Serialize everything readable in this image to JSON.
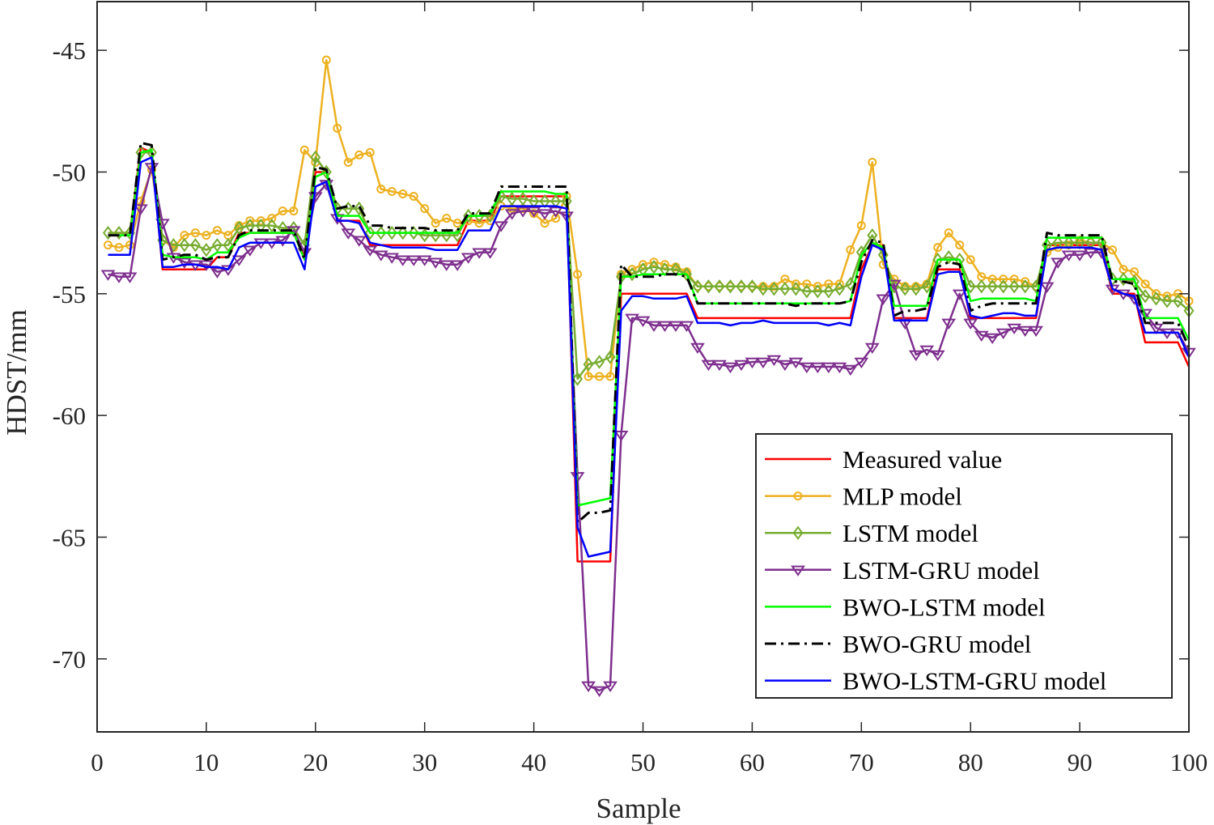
{
  "chart_data": {
    "type": "line",
    "xlabel": "Sample",
    "ylabel": "HDST/mm",
    "xlim": [
      0,
      100
    ],
    "ylim": [
      -73,
      -43
    ],
    "xticks": [
      0,
      10,
      20,
      30,
      40,
      50,
      60,
      70,
      80,
      90,
      100
    ],
    "yticks": [
      -45,
      -50,
      -55,
      -60,
      -65,
      -70
    ],
    "grid": false,
    "legend_position": "bottom-right",
    "x": [
      1,
      2,
      3,
      4,
      5,
      6,
      7,
      8,
      9,
      10,
      11,
      12,
      13,
      14,
      15,
      16,
      17,
      18,
      19,
      20,
      21,
      22,
      23,
      24,
      25,
      26,
      27,
      28,
      29,
      30,
      31,
      32,
      33,
      34,
      35,
      36,
      37,
      38,
      39,
      40,
      41,
      42,
      43,
      44,
      45,
      46,
      47,
      48,
      49,
      50,
      51,
      52,
      53,
      54,
      55,
      56,
      57,
      58,
      59,
      60,
      61,
      62,
      63,
      64,
      65,
      66,
      67,
      68,
      69,
      70,
      71,
      72,
      73,
      74,
      75,
      76,
      77,
      78,
      79,
      80,
      81,
      82,
      83,
      84,
      85,
      86,
      87,
      88,
      89,
      90,
      91,
      92,
      93,
      94,
      95,
      96,
      97,
      98,
      99,
      100
    ],
    "series": [
      {
        "name": "Measured value",
        "color": "#ff0000",
        "style": "solid",
        "marker": "none",
        "values": [
          -52.5,
          -52.5,
          -52.5,
          -49.0,
          -49.2,
          -54.0,
          -54.0,
          -54.0,
          -54.0,
          -54.0,
          -53.5,
          -53.5,
          -52.5,
          -52.5,
          -52.5,
          -52.5,
          -52.5,
          -52.5,
          -53.5,
          -50.0,
          -50.0,
          -52.0,
          -52.0,
          -52.0,
          -53.0,
          -53.0,
          -53.0,
          -53.0,
          -53.0,
          -53.0,
          -53.0,
          -53.0,
          -53.0,
          -52.0,
          -52.0,
          -52.0,
          -51.0,
          -51.0,
          -51.0,
          -51.0,
          -51.0,
          -51.0,
          -51.0,
          -66.0,
          -66.0,
          -66.0,
          -66.0,
          -55.0,
          -55.0,
          -55.0,
          -55.0,
          -55.0,
          -55.0,
          -55.0,
          -56.0,
          -56.0,
          -56.0,
          -56.0,
          -56.0,
          -56.0,
          -56.0,
          -56.0,
          -56.0,
          -56.0,
          -56.0,
          -56.0,
          -56.0,
          -56.0,
          -56.0,
          -54.0,
          -53.0,
          -53.0,
          -56.0,
          -56.0,
          -56.0,
          -56.0,
          -54.0,
          -54.0,
          -54.0,
          -56.0,
          -56.0,
          -56.0,
          -56.0,
          -56.0,
          -56.0,
          -56.0,
          -53.0,
          -53.0,
          -53.0,
          -53.0,
          -53.0,
          -53.0,
          -55.0,
          -55.0,
          -55.0,
          -57.0,
          -57.0,
          -57.0,
          -57.0,
          -58.0
        ]
      },
      {
        "name": "MLP model",
        "color": "#edb120",
        "style": "solid",
        "marker": "circle",
        "values": [
          -53.0,
          -53.1,
          -53.0,
          -51.2,
          -49.9,
          -52.8,
          -53.1,
          -52.6,
          -52.5,
          -52.6,
          -52.4,
          -52.6,
          -52.2,
          -52.0,
          -52.0,
          -51.9,
          -51.6,
          -51.6,
          -49.1,
          -49.6,
          -45.4,
          -48.2,
          -49.6,
          -49.3,
          -49.2,
          -50.7,
          -50.8,
          -50.9,
          -51.0,
          -51.5,
          -52.1,
          -51.9,
          -52.1,
          -52.0,
          -52.1,
          -52.0,
          -51.4,
          -51.5,
          -51.5,
          -51.7,
          -52.1,
          -51.9,
          -51.0,
          -54.2,
          -58.4,
          -58.4,
          -58.4,
          -54.2,
          -54.0,
          -53.8,
          -53.7,
          -53.8,
          -53.9,
          -54.1,
          -54.7,
          -54.7,
          -54.7,
          -54.7,
          -54.7,
          -54.7,
          -54.7,
          -54.7,
          -54.4,
          -54.6,
          -54.6,
          -54.7,
          -54.6,
          -54.6,
          -53.2,
          -52.2,
          -49.6,
          -53.8,
          -54.4,
          -54.7,
          -54.7,
          -54.6,
          -53.1,
          -52.5,
          -53.0,
          -53.6,
          -54.3,
          -54.4,
          -54.4,
          -54.4,
          -54.5,
          -54.7,
          -53.3,
          -53.1,
          -53.0,
          -52.8,
          -52.9,
          -52.9,
          -53.2,
          -54.0,
          -54.1,
          -54.6,
          -55.0,
          -55.1,
          -55.0,
          -55.3
        ]
      },
      {
        "name": "LSTM model",
        "color": "#77ac30",
        "style": "solid",
        "marker": "diamond",
        "values": [
          -52.5,
          -52.5,
          -52.5,
          -49.2,
          -49.2,
          -52.8,
          -53.0,
          -53.0,
          -53.0,
          -53.2,
          -53.0,
          -53.0,
          -52.3,
          -52.2,
          -52.2,
          -52.2,
          -52.3,
          -52.3,
          -53.0,
          -49.4,
          -50.0,
          -51.5,
          -51.5,
          -51.5,
          -52.5,
          -52.5,
          -52.5,
          -52.5,
          -52.5,
          -52.6,
          -52.6,
          -52.6,
          -52.6,
          -51.8,
          -51.8,
          -51.8,
          -51.0,
          -51.1,
          -51.1,
          -51.2,
          -51.2,
          -51.2,
          -51.2,
          -58.5,
          -57.9,
          -57.8,
          -57.6,
          -54.3,
          -54.2,
          -54.0,
          -53.9,
          -54.0,
          -54.0,
          -54.2,
          -54.7,
          -54.7,
          -54.7,
          -54.7,
          -54.7,
          -54.7,
          -54.8,
          -54.8,
          -54.8,
          -54.8,
          -54.9,
          -54.9,
          -54.9,
          -54.8,
          -54.6,
          -53.3,
          -52.6,
          -53.4,
          -54.7,
          -54.8,
          -54.8,
          -54.7,
          -53.6,
          -53.5,
          -53.6,
          -54.7,
          -54.7,
          -54.7,
          -54.7,
          -54.7,
          -54.7,
          -54.7,
          -53.0,
          -52.9,
          -52.9,
          -52.9,
          -52.9,
          -52.9,
          -54.4,
          -54.4,
          -54.5,
          -55.1,
          -55.2,
          -55.3,
          -55.3,
          -55.7
        ]
      },
      {
        "name": "LSTM-GRU model",
        "color": "#7e2f8e",
        "style": "solid",
        "marker": "triangle-down",
        "values": [
          -54.2,
          -54.3,
          -54.3,
          -51.5,
          -49.8,
          -52.1,
          -53.5,
          -53.7,
          -53.8,
          -53.8,
          -54.1,
          -54.0,
          -53.6,
          -53.2,
          -52.9,
          -52.9,
          -52.8,
          -52.4,
          -53.3,
          -51.0,
          -50.5,
          -51.9,
          -52.5,
          -52.8,
          -53.2,
          -53.4,
          -53.5,
          -53.6,
          -53.6,
          -53.6,
          -53.7,
          -53.8,
          -53.8,
          -53.5,
          -53.3,
          -53.3,
          -52.2,
          -51.7,
          -51.6,
          -51.6,
          -51.7,
          -51.6,
          -51.8,
          -62.5,
          -71.1,
          -71.3,
          -71.1,
          -60.8,
          -56.0,
          -56.1,
          -56.3,
          -56.3,
          -56.3,
          -56.3,
          -57.2,
          -57.9,
          -57.9,
          -58.0,
          -57.9,
          -57.8,
          -57.8,
          -57.7,
          -57.9,
          -57.8,
          -58.0,
          -58.0,
          -58.0,
          -58.0,
          -58.1,
          -57.8,
          -57.2,
          -55.2,
          -54.6,
          -56.2,
          -57.5,
          -57.3,
          -57.5,
          -56.2,
          -55.0,
          -56.2,
          -56.7,
          -56.8,
          -56.6,
          -56.4,
          -56.5,
          -56.5,
          -54.7,
          -53.7,
          -53.4,
          -53.4,
          -53.3,
          -53.3,
          -54.8,
          -55.0,
          -55.2,
          -55.8,
          -56.4,
          -56.6,
          -56.6,
          -57.4
        ]
      },
      {
        "name": "BWO-LSTM model",
        "color": "#00ff00",
        "style": "solid",
        "marker": "none",
        "values": [
          -52.6,
          -52.6,
          -52.6,
          -49.2,
          -49.1,
          -53.4,
          -53.5,
          -53.5,
          -53.5,
          -53.6,
          -53.3,
          -53.3,
          -52.7,
          -52.5,
          -52.5,
          -52.5,
          -52.5,
          -52.5,
          -53.6,
          -50.2,
          -50.0,
          -51.8,
          -51.8,
          -51.8,
          -52.5,
          -52.5,
          -52.5,
          -52.5,
          -52.5,
          -52.5,
          -52.5,
          -52.5,
          -52.5,
          -51.8,
          -51.8,
          -51.7,
          -50.8,
          -50.8,
          -50.8,
          -50.8,
          -50.8,
          -50.9,
          -50.9,
          -63.7,
          -63.6,
          -63.5,
          -63.4,
          -54.3,
          -54.3,
          -54.2,
          -54.2,
          -54.2,
          -54.2,
          -54.2,
          -55.4,
          -55.4,
          -55.4,
          -55.4,
          -55.4,
          -55.4,
          -55.4,
          -55.4,
          -55.4,
          -55.4,
          -55.4,
          -55.4,
          -55.4,
          -55.4,
          -55.3,
          -53.4,
          -52.9,
          -53.1,
          -55.5,
          -55.5,
          -55.5,
          -55.5,
          -53.6,
          -53.6,
          -53.6,
          -55.3,
          -55.2,
          -55.2,
          -55.2,
          -55.2,
          -55.2,
          -55.3,
          -52.7,
          -52.7,
          -52.7,
          -52.7,
          -52.7,
          -52.7,
          -54.4,
          -54.4,
          -54.4,
          -56.0,
          -56.0,
          -56.0,
          -56.0,
          -56.9
        ]
      },
      {
        "name": "BWO-GRU model",
        "color": "#000000",
        "style": "dashdot",
        "marker": "none",
        "values": [
          -52.6,
          -52.6,
          -52.6,
          -48.8,
          -48.9,
          -53.6,
          -53.5,
          -53.4,
          -53.4,
          -53.6,
          -53.5,
          -53.5,
          -52.6,
          -52.4,
          -52.4,
          -52.4,
          -52.4,
          -52.4,
          -53.6,
          -49.8,
          -49.9,
          -51.5,
          -51.4,
          -51.4,
          -52.2,
          -52.2,
          -52.3,
          -52.3,
          -52.3,
          -52.3,
          -52.4,
          -52.4,
          -52.4,
          -51.7,
          -51.7,
          -51.7,
          -50.6,
          -50.6,
          -50.6,
          -50.6,
          -50.6,
          -50.6,
          -50.6,
          -64.4,
          -64.0,
          -64.0,
          -63.9,
          -53.8,
          -54.3,
          -54.3,
          -54.3,
          -54.2,
          -54.2,
          -54.3,
          -55.4,
          -55.4,
          -55.4,
          -55.4,
          -55.4,
          -55.4,
          -55.4,
          -55.4,
          -55.4,
          -55.5,
          -55.4,
          -55.4,
          -55.4,
          -55.4,
          -55.3,
          -53.7,
          -52.8,
          -52.9,
          -55.9,
          -55.7,
          -55.7,
          -55.6,
          -53.9,
          -53.7,
          -53.8,
          -55.7,
          -55.5,
          -55.4,
          -55.4,
          -55.4,
          -55.4,
          -55.4,
          -52.5,
          -52.6,
          -52.6,
          -52.6,
          -52.6,
          -52.6,
          -54.5,
          -54.5,
          -54.6,
          -56.2,
          -56.2,
          -56.2,
          -56.2,
          -57.2
        ]
      },
      {
        "name": "BWO-LSTM-GRU model",
        "color": "#0000ff",
        "style": "solid",
        "marker": "none",
        "values": [
          -53.4,
          -53.4,
          -53.4,
          -49.6,
          -49.4,
          -53.9,
          -53.9,
          -53.8,
          -53.8,
          -53.9,
          -53.9,
          -54.0,
          -53.1,
          -52.9,
          -52.9,
          -52.9,
          -52.9,
          -52.9,
          -54.0,
          -50.6,
          -50.4,
          -52.0,
          -52.0,
          -52.1,
          -52.9,
          -53.0,
          -53.1,
          -53.1,
          -53.1,
          -53.1,
          -53.2,
          -53.2,
          -53.2,
          -52.4,
          -52.4,
          -52.4,
          -51.4,
          -51.4,
          -51.4,
          -51.4,
          -51.4,
          -51.4,
          -51.5,
          -64.6,
          -65.8,
          -65.7,
          -65.6,
          -55.7,
          -55.1,
          -55.1,
          -55.2,
          -55.2,
          -55.2,
          -55.1,
          -56.2,
          -56.2,
          -56.2,
          -56.3,
          -56.2,
          -56.2,
          -56.1,
          -56.2,
          -56.2,
          -56.2,
          -56.2,
          -56.2,
          -56.3,
          -56.2,
          -56.3,
          -54.3,
          -53.0,
          -53.2,
          -56.1,
          -56.1,
          -56.1,
          -56.1,
          -54.2,
          -54.1,
          -54.1,
          -55.9,
          -56.0,
          -55.9,
          -55.8,
          -55.8,
          -55.9,
          -55.9,
          -53.2,
          -53.1,
          -53.1,
          -53.1,
          -53.1,
          -53.2,
          -54.8,
          -55.0,
          -55.1,
          -56.6,
          -56.6,
          -56.6,
          -56.6,
          -57.6
        ]
      }
    ]
  }
}
